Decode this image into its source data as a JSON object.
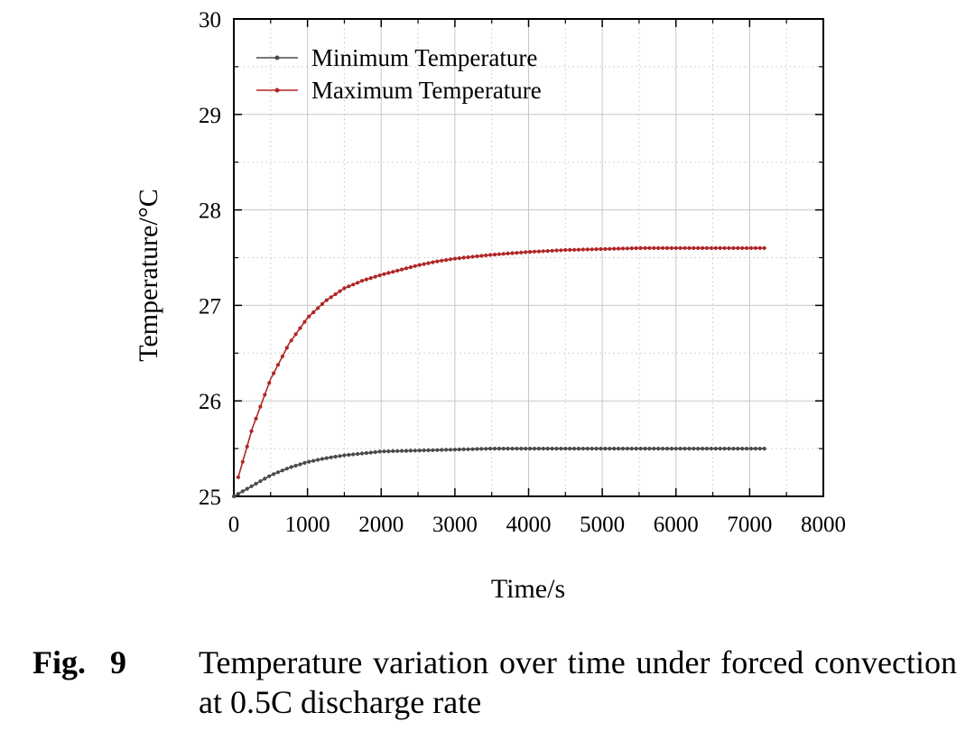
{
  "chart_data": {
    "type": "line",
    "xlabel": "Time/s",
    "ylabel": "Temperature/°C",
    "xlim": [
      0,
      8000
    ],
    "ylim": [
      25,
      30
    ],
    "xticks": [
      0,
      1000,
      2000,
      3000,
      4000,
      5000,
      6000,
      7000,
      8000
    ],
    "yticks": [
      25,
      26,
      27,
      28,
      29,
      30
    ],
    "grid": true,
    "legend_position": "top-left",
    "series": [
      {
        "name": "Minimum Temperature",
        "color": "#4a4a4a",
        "marker": "dot",
        "x": [
          0,
          250,
          500,
          750,
          1000,
          1250,
          1500,
          1750,
          2000,
          2500,
          3000,
          3500,
          4000,
          4500,
          5000,
          5500,
          6000,
          6500,
          7000,
          7200
        ],
        "y": [
          25.0,
          25.11,
          25.22,
          25.3,
          25.36,
          25.4,
          25.43,
          25.45,
          25.47,
          25.48,
          25.49,
          25.5,
          25.5,
          25.5,
          25.5,
          25.5,
          25.5,
          25.5,
          25.5,
          25.5
        ]
      },
      {
        "name": "Maximum Temperature",
        "color": "#b02626",
        "marker": "dot",
        "x": [
          60,
          250,
          500,
          750,
          1000,
          1250,
          1500,
          1750,
          2000,
          2250,
          2500,
          2750,
          3000,
          3500,
          4000,
          4500,
          5000,
          5500,
          6000,
          6500,
          7000,
          7200
        ],
        "y": [
          25.2,
          25.71,
          26.23,
          26.6,
          26.87,
          27.05,
          27.18,
          27.26,
          27.32,
          27.37,
          27.42,
          27.46,
          27.49,
          27.53,
          27.56,
          27.58,
          27.59,
          27.6,
          27.6,
          27.6,
          27.6,
          27.6
        ]
      }
    ]
  },
  "caption": {
    "label": "Fig. 9",
    "text": "Temperature variation over time under forced convection at 0.5C discharge rate"
  }
}
